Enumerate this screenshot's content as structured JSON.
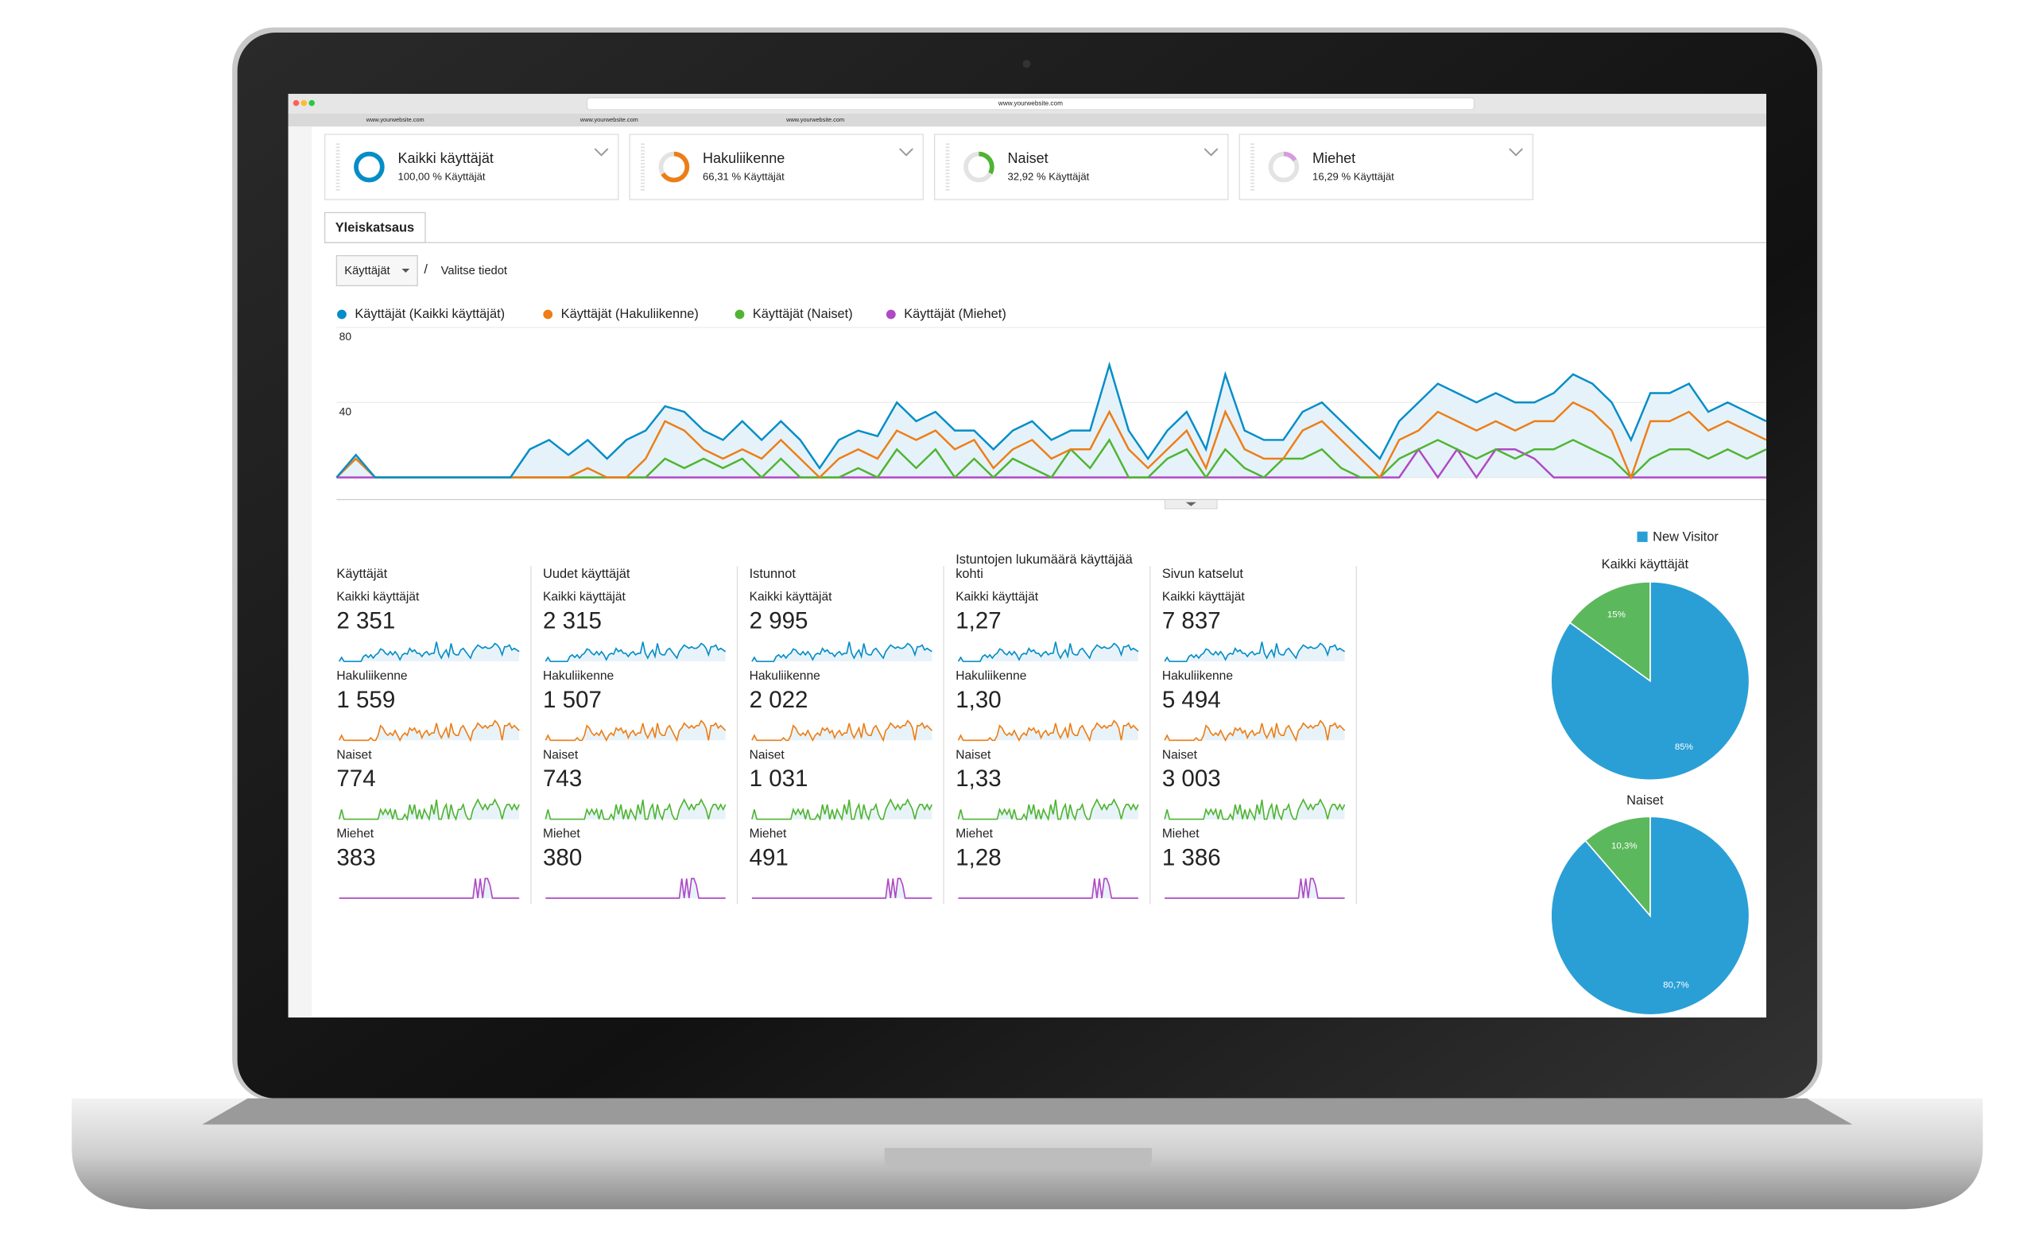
{
  "browser": {
    "url": "www.yourwebsite.com",
    "tabs": [
      "www.yourwebsite.com",
      "www.yourwebsite.com",
      "www.yourwebsite.com"
    ]
  },
  "segments": [
    {
      "name": "Kaikki käyttäjät",
      "subtitle": "100,00 % Käyttäjät",
      "percent": 100,
      "color": "#058dc7"
    },
    {
      "name": "Hakuliikenne",
      "subtitle": "66,31 % Käyttäjät",
      "percent": 66.31,
      "color": "#ed7e17"
    },
    {
      "name": "Naiset",
      "subtitle": "32,92 % Käyttäjät",
      "percent": 32.92,
      "color": "#50b432"
    },
    {
      "name": "Miehet",
      "subtitle": "16,29 % Käyttäjät",
      "percent": 16.29,
      "color": "#d79be0"
    }
  ],
  "tab": "Yleiskatsaus",
  "metric_select": "Käyttäjät",
  "separator": "/",
  "link": "Valitse tiedot",
  "chart_data": [
    {
      "type": "line",
      "ylim": [
        0,
        80
      ],
      "yticks": [
        40,
        80
      ],
      "grid": true,
      "series": [
        {
          "name": "Käyttäjät (Kaikki käyttäjät)",
          "color": "#058dc7",
          "values": [
            0,
            12,
            0,
            0,
            0,
            0,
            0,
            0,
            0,
            0,
            15,
            20,
            12,
            20,
            10,
            20,
            25,
            38,
            35,
            25,
            20,
            30,
            20,
            30,
            20,
            5,
            20,
            25,
            22,
            40,
            30,
            35,
            25,
            25,
            15,
            25,
            30,
            20,
            25,
            25,
            60,
            25,
            10,
            25,
            35,
            15,
            55,
            25,
            20,
            20,
            35,
            40,
            30,
            20,
            10,
            30,
            40,
            50,
            45,
            40,
            45,
            40,
            40,
            45,
            55,
            50,
            40,
            20,
            45,
            45,
            50,
            35,
            40,
            35,
            30
          ]
        },
        {
          "name": "Käyttäjät (Hakuliikenne)",
          "color": "#ed7e17",
          "values": [
            0,
            10,
            0,
            0,
            0,
            0,
            0,
            0,
            0,
            0,
            0,
            0,
            0,
            5,
            0,
            0,
            10,
            30,
            25,
            15,
            10,
            15,
            10,
            20,
            10,
            0,
            10,
            15,
            10,
            25,
            20,
            25,
            15,
            20,
            5,
            15,
            20,
            10,
            15,
            15,
            35,
            15,
            5,
            15,
            25,
            5,
            35,
            15,
            10,
            10,
            25,
            30,
            20,
            10,
            0,
            20,
            25,
            35,
            30,
            25,
            30,
            25,
            30,
            30,
            40,
            35,
            25,
            0,
            30,
            30,
            35,
            25,
            30,
            25,
            20
          ]
        },
        {
          "name": "Käyttäjät (Naiset)",
          "color": "#50b432",
          "values": [
            0,
            10,
            0,
            0,
            0,
            0,
            0,
            0,
            0,
            0,
            0,
            0,
            0,
            0,
            0,
            0,
            0,
            10,
            5,
            10,
            5,
            10,
            0,
            10,
            0,
            0,
            0,
            5,
            0,
            15,
            5,
            15,
            0,
            10,
            0,
            10,
            5,
            0,
            15,
            5,
            20,
            0,
            0,
            10,
            15,
            0,
            15,
            5,
            0,
            10,
            10,
            15,
            5,
            0,
            0,
            10,
            15,
            20,
            15,
            10,
            15,
            10,
            15,
            15,
            20,
            15,
            10,
            0,
            10,
            15,
            15,
            10,
            15,
            10,
            15
          ]
        },
        {
          "name": "Käyttäjät (Miehet)",
          "color": "#af49c5",
          "values": [
            0,
            0,
            0,
            0,
            0,
            0,
            0,
            0,
            0,
            0,
            0,
            0,
            0,
            0,
            0,
            0,
            0,
            0,
            0,
            0,
            0,
            0,
            0,
            0,
            0,
            0,
            0,
            0,
            0,
            0,
            0,
            0,
            0,
            0,
            0,
            0,
            0,
            0,
            0,
            0,
            0,
            0,
            0,
            0,
            0,
            0,
            0,
            0,
            0,
            0,
            0,
            0,
            0,
            0,
            0,
            0,
            15,
            0,
            15,
            0,
            15,
            15,
            10,
            0,
            0,
            0,
            0,
            0,
            0,
            0,
            0,
            0,
            0,
            0,
            0
          ]
        }
      ]
    },
    {
      "type": "pie",
      "values": [
        85,
        15
      ],
      "value_labels": [
        "85%",
        "15%"
      ],
      "colors": [
        "#2a9fd6",
        "#5cb85c"
      ]
    },
    {
      "type": "pie",
      "values": [
        80.7,
        10.3
      ],
      "value_labels": [
        "80,7%",
        "10,3%"
      ],
      "colors": [
        "#2a9fd6",
        "#5cb85c"
      ]
    }
  ],
  "pie_legend": {
    "label": "New Visitor",
    "color": "#2a9fd6"
  },
  "metrics": [
    {
      "title": "Käyttäjät",
      "values": [
        "2 351",
        "1 559",
        "774",
        "383"
      ]
    },
    {
      "title": "Uudet käyttäjät",
      "values": [
        "2 315",
        "1 507",
        "743",
        "380"
      ]
    },
    {
      "title": "Istunnot",
      "values": [
        "2 995",
        "2 022",
        "1 031",
        "491"
      ]
    },
    {
      "title": "Istuntojen lukumäärä käyttäjää kohti",
      "values": [
        "1,27",
        "1,30",
        "1,33",
        "1,28"
      ]
    },
    {
      "title": "Sivun katselut",
      "values": [
        "7 837",
        "5 494",
        "3 003",
        "1 386"
      ]
    }
  ]
}
